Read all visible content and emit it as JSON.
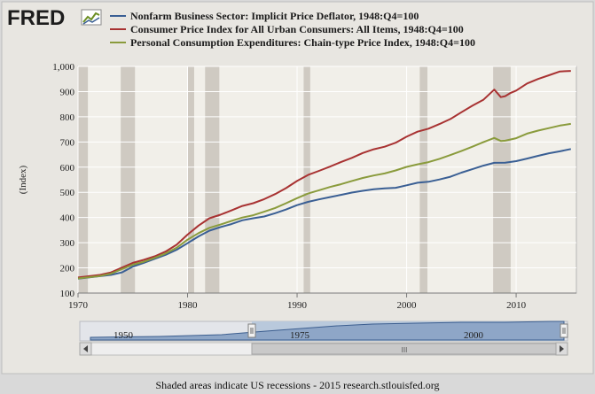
{
  "header": {
    "logo_text": "FRED"
  },
  "chart_data": {
    "type": "line",
    "title": "",
    "xlabel": "",
    "ylabel": "(Index)",
    "xlim": [
      1970,
      2015.5
    ],
    "ylim": [
      100,
      1000
    ],
    "x_ticks": [
      1970,
      1980,
      1990,
      2000,
      2010
    ],
    "y_ticks": [
      100,
      200,
      300,
      400,
      500,
      600,
      700,
      800,
      900,
      1000
    ],
    "y_tick_labels": [
      "100",
      "200",
      "300",
      "400",
      "500",
      "600",
      "700",
      "800",
      "900",
      "1,000"
    ],
    "grid": true,
    "legend_position": "top",
    "recessions": [
      [
        1969.9,
        1970.9
      ],
      [
        1973.9,
        1975.2
      ],
      [
        1980.0,
        1980.6
      ],
      [
        1981.6,
        1982.9
      ],
      [
        1990.6,
        1991.2
      ],
      [
        2001.2,
        2001.9
      ],
      [
        2007.9,
        2009.5
      ]
    ],
    "series": [
      {
        "name": "Nonfarm Business Sector: Implicit Price Deflator, 1948:Q4=100",
        "color": "#3a5f94",
        "x": [
          1970,
          1972,
          1973,
          1974,
          1975,
          1976,
          1977,
          1978,
          1979,
          1980,
          1981,
          1982,
          1983,
          1984,
          1985,
          1986,
          1987,
          1988,
          1989,
          1990,
          1991,
          1992,
          1993,
          1994,
          1995,
          1996,
          1997,
          1998,
          1999,
          2000,
          2001,
          2002,
          2003,
          2004,
          2005,
          2006,
          2007,
          2008,
          2009,
          2010,
          2011,
          2012,
          2013,
          2014,
          2015
        ],
        "y": [
          157,
          167,
          172,
          182,
          205,
          220,
          236,
          252,
          272,
          298,
          325,
          348,
          362,
          374,
          389,
          397,
          404,
          417,
          432,
          449,
          462,
          472,
          481,
          490,
          499,
          506,
          512,
          516,
          518,
          528,
          538,
          542,
          551,
          562,
          578,
          592,
          606,
          617,
          618,
          624,
          634,
          645,
          655,
          663,
          672
        ]
      },
      {
        "name": "Consumer Price Index for All Urban Consumers: All Items, 1948:Q4=100",
        "color": "#a83232",
        "x": [
          1970,
          1972,
          1973,
          1974,
          1975,
          1976,
          1977,
          1978,
          1979,
          1980,
          1981,
          1982,
          1983,
          1984,
          1985,
          1986,
          1987,
          1988,
          1989,
          1990,
          1991,
          1992,
          1993,
          1994,
          1995,
          1996,
          1997,
          1998,
          1999,
          2000,
          2001,
          2002,
          2003,
          2004,
          2005,
          2006,
          2007,
          2008,
          2008.6,
          2009,
          2009.5,
          2010,
          2011,
          2012,
          2013,
          2014,
          2015
        ],
        "y": [
          162,
          172,
          182,
          201,
          220,
          232,
          246,
          265,
          292,
          332,
          368,
          397,
          411,
          428,
          446,
          457,
          473,
          493,
          517,
          545,
          569,
          585,
          602,
          620,
          637,
          656,
          671,
          681,
          697,
          721,
          741,
          753,
          771,
          791,
          818,
          844,
          867,
          908,
          878,
          882,
          895,
          904,
          932,
          950,
          965,
          980,
          982
        ]
      },
      {
        "name": "Personal Consumption Expenditures: Chain-type Price Index, 1948:Q4=100",
        "color": "#8a9b3c",
        "x": [
          1970,
          1972,
          1973,
          1974,
          1975,
          1976,
          1977,
          1978,
          1979,
          1980,
          1981,
          1982,
          1983,
          1984,
          1985,
          1986,
          1987,
          1988,
          1989,
          1990,
          1991,
          1992,
          1993,
          1994,
          1995,
          1996,
          1997,
          1998,
          1999,
          2000,
          2001,
          2002,
          2003,
          2004,
          2005,
          2006,
          2007,
          2008,
          2008.6,
          2009,
          2010,
          2011,
          2012,
          2013,
          2014,
          2015
        ],
        "y": [
          158,
          168,
          177,
          195,
          213,
          224,
          240,
          257,
          280,
          312,
          338,
          359,
          372,
          386,
          400,
          409,
          423,
          438,
          457,
          477,
          495,
          508,
          521,
          532,
          545,
          557,
          567,
          575,
          587,
          601,
          611,
          620,
          633,
          648,
          664,
          681,
          699,
          716,
          704,
          705,
          715,
          733,
          745,
          755,
          765,
          772
        ]
      }
    ]
  },
  "navigator": {
    "labels": [
      "1950",
      "1975",
      "2000"
    ],
    "scroll_label": "III"
  },
  "footer": {
    "text": "Shaded areas indicate US recessions - 2015 research.stlouisfed.org"
  }
}
